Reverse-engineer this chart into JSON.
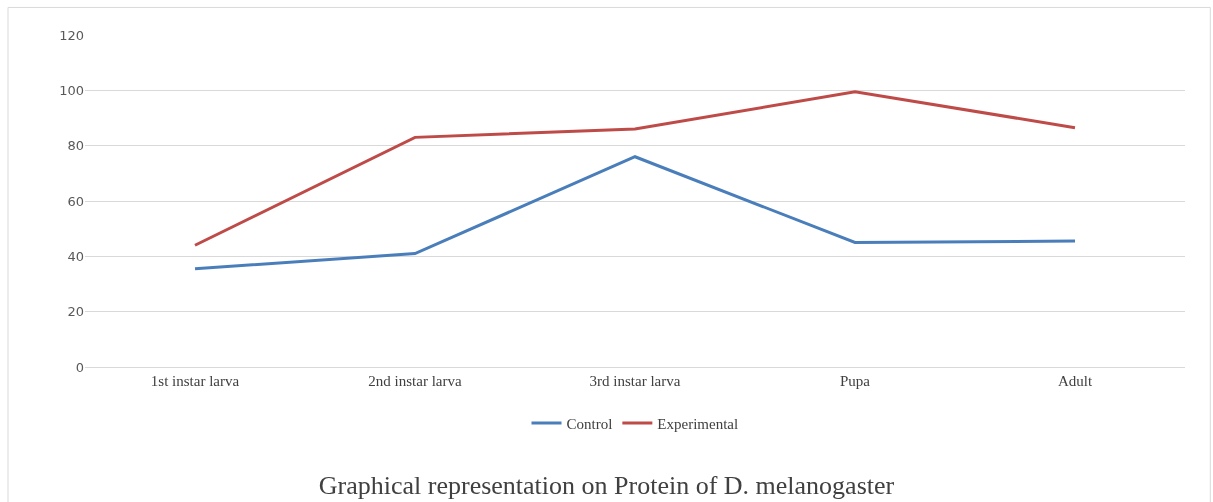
{
  "chart_data": {
    "type": "line",
    "title": "Graphical representation on Protein of D. melanogaster",
    "categories": [
      "1st instar larva",
      "2nd instar larva",
      "3rd instar larva",
      "Pupa",
      "Adult"
    ],
    "series": [
      {
        "name": "Control",
        "color": "#4a7ebb",
        "values": [
          35.5,
          41,
          76,
          45,
          45.5
        ]
      },
      {
        "name": "Experimental",
        "color": "#be4b48",
        "values": [
          44,
          83,
          86,
          99.5,
          86.5
        ]
      }
    ],
    "ylim": [
      0,
      120
    ],
    "yticks": [
      0,
      20,
      40,
      60,
      80,
      100,
      120
    ],
    "grid": "y",
    "legend": "bottom",
    "marker": "none",
    "line_style": "solid"
  }
}
